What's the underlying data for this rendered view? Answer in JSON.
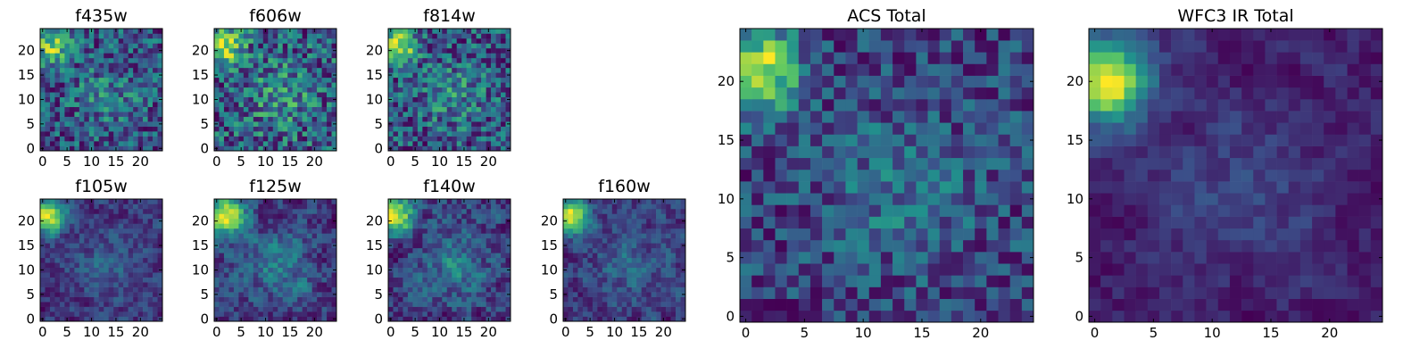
{
  "chart_data": [
    {
      "type": "heatmap",
      "title": "f435w",
      "grid_size": 25,
      "xticks": [
        0,
        5,
        10,
        15,
        20
      ],
      "yticks": [
        0,
        5,
        10,
        15,
        20
      ],
      "colormap": "viridis",
      "bright_spot": [
        2,
        21
      ],
      "seed": 11,
      "noise": 0.85,
      "smooth": 0,
      "gain": 0.45
    },
    {
      "type": "heatmap",
      "title": "f606w",
      "grid_size": 25,
      "xticks": [
        0,
        5,
        10,
        15,
        20
      ],
      "yticks": [
        0,
        5,
        10,
        15,
        20
      ],
      "colormap": "viridis",
      "bright_spot": [
        2,
        21
      ],
      "seed": 23,
      "noise": 0.8,
      "smooth": 0,
      "gain": 0.4
    },
    {
      "type": "heatmap",
      "title": "f814w",
      "grid_size": 25,
      "xticks": [
        0,
        5,
        10,
        15,
        20
      ],
      "yticks": [
        0,
        5,
        10,
        15,
        20
      ],
      "colormap": "viridis",
      "bright_spot": [
        2,
        21
      ],
      "seed": 37,
      "noise": 0.75,
      "smooth": 0,
      "gain": 0.45
    },
    {
      "type": "heatmap",
      "title": "f105w",
      "grid_size": 25,
      "xticks": [
        0,
        5,
        10,
        15,
        20
      ],
      "yticks": [
        0,
        5,
        10,
        15,
        20
      ],
      "colormap": "viridis",
      "bright_spot": [
        1,
        21
      ],
      "seed": 41,
      "noise": 0.7,
      "smooth": 1,
      "gain": 0.7
    },
    {
      "type": "heatmap",
      "title": "f125w",
      "grid_size": 25,
      "xticks": [
        0,
        5,
        10,
        15,
        20
      ],
      "yticks": [
        0,
        5,
        10,
        15,
        20
      ],
      "colormap": "viridis",
      "bright_spot": [
        2,
        21
      ],
      "seed": 53,
      "noise": 0.7,
      "smooth": 1,
      "gain": 0.6
    },
    {
      "type": "heatmap",
      "title": "f140w",
      "grid_size": 25,
      "xticks": [
        0,
        5,
        10,
        15,
        20
      ],
      "yticks": [
        0,
        5,
        10,
        15,
        20
      ],
      "colormap": "viridis",
      "bright_spot": [
        1,
        21
      ],
      "seed": 67,
      "noise": 0.75,
      "smooth": 1,
      "gain": 0.55
    },
    {
      "type": "heatmap",
      "title": "f160w",
      "grid_size": 25,
      "xticks": [
        0,
        5,
        10,
        15,
        20
      ],
      "yticks": [
        0,
        5,
        10,
        15,
        20
      ],
      "colormap": "viridis",
      "bright_spot": [
        1,
        21
      ],
      "seed": 79,
      "noise": 0.8,
      "smooth": 1,
      "gain": 0.75
    },
    {
      "type": "heatmap",
      "title": "ACS Total",
      "grid_size": 25,
      "xticks": [
        0,
        5,
        10,
        15,
        20
      ],
      "yticks": [
        0,
        5,
        10,
        15,
        20
      ],
      "colormap": "viridis",
      "bright_spot": [
        1,
        21
      ],
      "seed": 97,
      "noise": 0.7,
      "smooth": 0,
      "gain": 0.65
    },
    {
      "type": "heatmap",
      "title": "WFC3 IR Total",
      "grid_size": 25,
      "xticks": [
        0,
        5,
        10,
        15,
        20
      ],
      "yticks": [
        0,
        5,
        10,
        15,
        20
      ],
      "colormap": "viridis",
      "bright_spot": [
        1,
        20
      ],
      "seed": 101,
      "noise": 0.55,
      "smooth": 1,
      "gain": 1.0
    }
  ],
  "colors": {
    "viridis_stops": [
      "#440154",
      "#3b528b",
      "#21918c",
      "#5ec962",
      "#fde725"
    ],
    "axis": "#000000"
  }
}
